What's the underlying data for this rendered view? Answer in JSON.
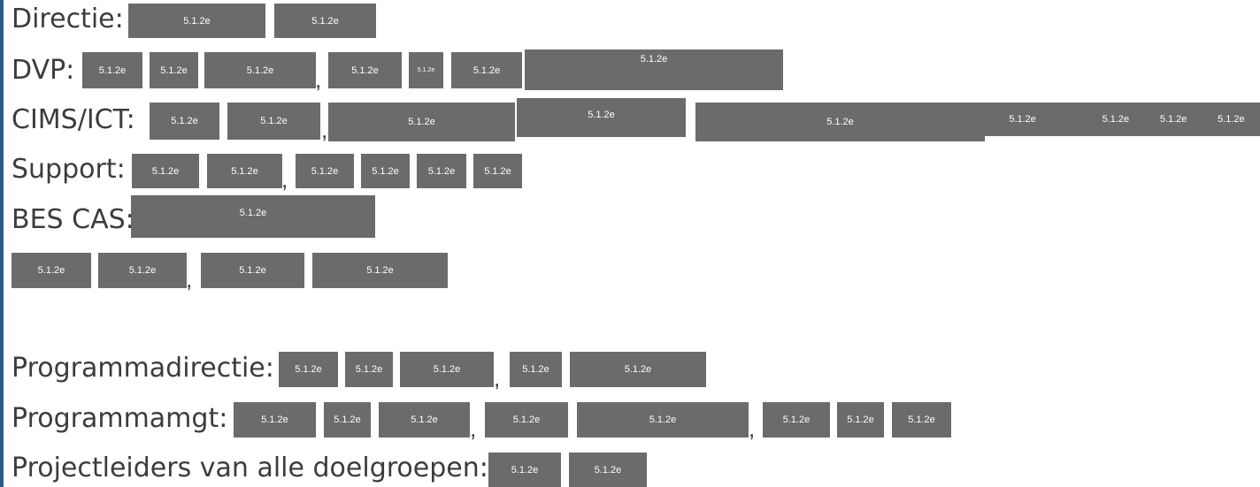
{
  "redaction_code": "5.1.2e",
  "rows": {
    "directie": {
      "label": "Directie:"
    },
    "dvp": {
      "label": "DVP:"
    },
    "cims": {
      "label": "CIMS/ICT:"
    },
    "support": {
      "label": "Support:"
    },
    "bes": {
      "label": "BES CAS:"
    },
    "programmadirectie": {
      "label": "Programmadirectie:"
    },
    "programmamgt": {
      "label": "Programmamgt:"
    },
    "projectleiders": {
      "label": "Projectleiders van alle doelgroepen:"
    }
  },
  "comma": ",",
  "colors": {
    "redaction_box": "#6b6b6b",
    "left_bar": "#2a5a8c"
  }
}
